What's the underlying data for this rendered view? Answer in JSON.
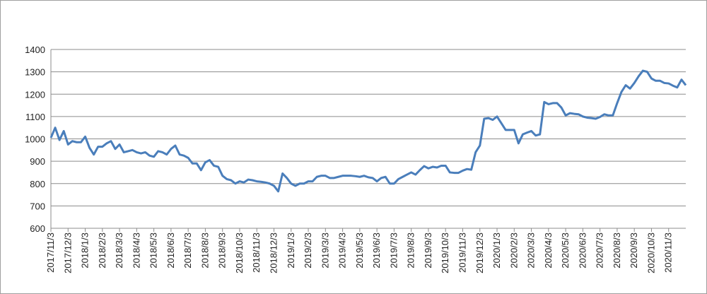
{
  "chart_data": {
    "type": "line",
    "categories": [
      "2017/11/3",
      null,
      null,
      null,
      "2017/12/3",
      null,
      null,
      null,
      "2018/1/3",
      null,
      null,
      null,
      "2018/2/3",
      null,
      null,
      null,
      "2018/3/3",
      null,
      null,
      null,
      "2018/4/3",
      null,
      null,
      null,
      "2018/5/3",
      null,
      null,
      null,
      "2018/6/3",
      null,
      null,
      null,
      "2018/7/3",
      null,
      null,
      null,
      "2018/8/3",
      null,
      null,
      null,
      "2018/9/3",
      null,
      null,
      null,
      "2018/10/3",
      null,
      null,
      null,
      "2018/11/3",
      null,
      null,
      null,
      "2018/12/3",
      null,
      null,
      null,
      "2019/1/3",
      null,
      null,
      null,
      "2019/2/3",
      null,
      null,
      null,
      "2019/3/3",
      null,
      null,
      null,
      "2019/4/3",
      null,
      null,
      null,
      "2019/5/3",
      null,
      null,
      null,
      "2019/6/3",
      null,
      null,
      null,
      "2019/7/3",
      null,
      null,
      null,
      "2019/8/3",
      null,
      null,
      null,
      "2019/9/3",
      null,
      null,
      null,
      "2019/10/3",
      null,
      null,
      null,
      "2019/11/3",
      null,
      null,
      null,
      "2019/12/3",
      null,
      null,
      null,
      "2020/1/3",
      null,
      null,
      null,
      "2020/2/3",
      null,
      null,
      null,
      "2020/3/3",
      null,
      null,
      null,
      "2020/4/3",
      null,
      null,
      null,
      "2020/5/3",
      null,
      null,
      null,
      "2020/6/3",
      null,
      null,
      null,
      "2020/7/3",
      null,
      null,
      null,
      "2020/8/3",
      null,
      null,
      null,
      "2020/9/3",
      null,
      null,
      null,
      "2020/10/3",
      null,
      null,
      null,
      "2020/11/3",
      null,
      null,
      null,
      null
    ],
    "values": [
      1005,
      1050,
      995,
      1035,
      975,
      990,
      985,
      985,
      1010,
      960,
      930,
      965,
      965,
      980,
      990,
      955,
      975,
      940,
      945,
      950,
      940,
      935,
      940,
      925,
      920,
      945,
      940,
      930,
      955,
      970,
      930,
      925,
      915,
      890,
      890,
      860,
      895,
      905,
      880,
      875,
      835,
      820,
      815,
      800,
      810,
      805,
      818,
      815,
      810,
      808,
      805,
      800,
      790,
      765,
      845,
      825,
      800,
      790,
      800,
      800,
      810,
      810,
      830,
      835,
      835,
      825,
      825,
      830,
      835,
      835,
      835,
      833,
      830,
      835,
      828,
      825,
      810,
      825,
      830,
      800,
      800,
      820,
      830,
      840,
      850,
      840,
      860,
      878,
      868,
      875,
      872,
      880,
      880,
      850,
      848,
      848,
      858,
      865,
      862,
      940,
      970,
      1090,
      1093,
      1085,
      1100,
      1070,
      1040,
      1040,
      1040,
      980,
      1020,
      1028,
      1035,
      1015,
      1020,
      1165,
      1155,
      1160,
      1160,
      1140,
      1105,
      1115,
      1112,
      1110,
      1100,
      1095,
      1093,
      1090,
      1098,
      1110,
      1105,
      1105,
      1160,
      1210,
      1240,
      1225,
      1250,
      1280,
      1305,
      1300,
      1270,
      1260,
      1260,
      1250,
      1248,
      1238,
      1230,
      1265,
      1240
    ],
    "color": "#4a7ebb",
    "ylim": [
      600,
      1400
    ],
    "yticks": [
      600,
      700,
      800,
      900,
      1000,
      1100,
      1200,
      1300,
      1400
    ],
    "grid": true
  }
}
